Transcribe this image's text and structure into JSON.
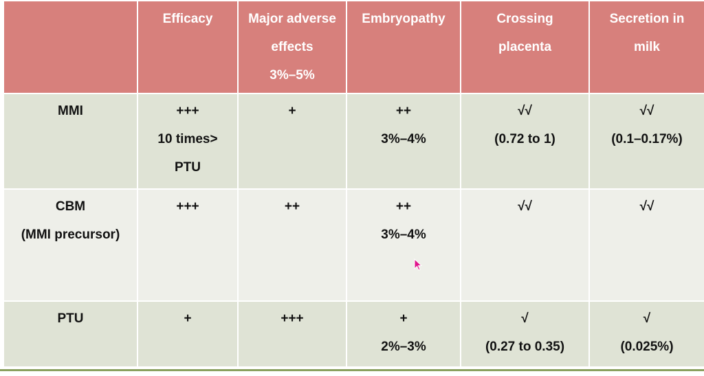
{
  "table": {
    "headers": [
      [
        ""
      ],
      [
        "Efficacy"
      ],
      [
        "Major adverse",
        "effects",
        "3%–5%"
      ],
      [
        "Embryopathy"
      ],
      [
        "Crossing",
        "placenta"
      ],
      [
        "Secretion in",
        "milk"
      ]
    ],
    "rows": [
      [
        [
          "MMI"
        ],
        [
          "+++",
          "10 times>",
          "PTU"
        ],
        [
          "+"
        ],
        [
          "++",
          "3%–4%"
        ],
        [
          "√√",
          "(0.72 to 1)"
        ],
        [
          "√√",
          "(0.1–0.17%)"
        ]
      ],
      [
        [
          "CBM",
          "(MMI precursor)"
        ],
        [
          "+++"
        ],
        [
          "++"
        ],
        [
          "++",
          "3%–4%"
        ],
        [
          "√√"
        ],
        [
          "√√"
        ]
      ],
      [
        [
          "PTU"
        ],
        [
          "+"
        ],
        [
          "+++"
        ],
        [
          "+",
          "2%–3%"
        ],
        [
          "√",
          "(0.27 to 0.35)"
        ],
        [
          "√",
          "(0.025%)"
        ]
      ]
    ]
  },
  "colors": {
    "header_bg": "#d7807c",
    "row_light_green": "#dfe3d5",
    "row_light_gray": "#eeefe9",
    "cursor": "#e0148c"
  },
  "cursor_icon": "mouse-pointer-icon"
}
